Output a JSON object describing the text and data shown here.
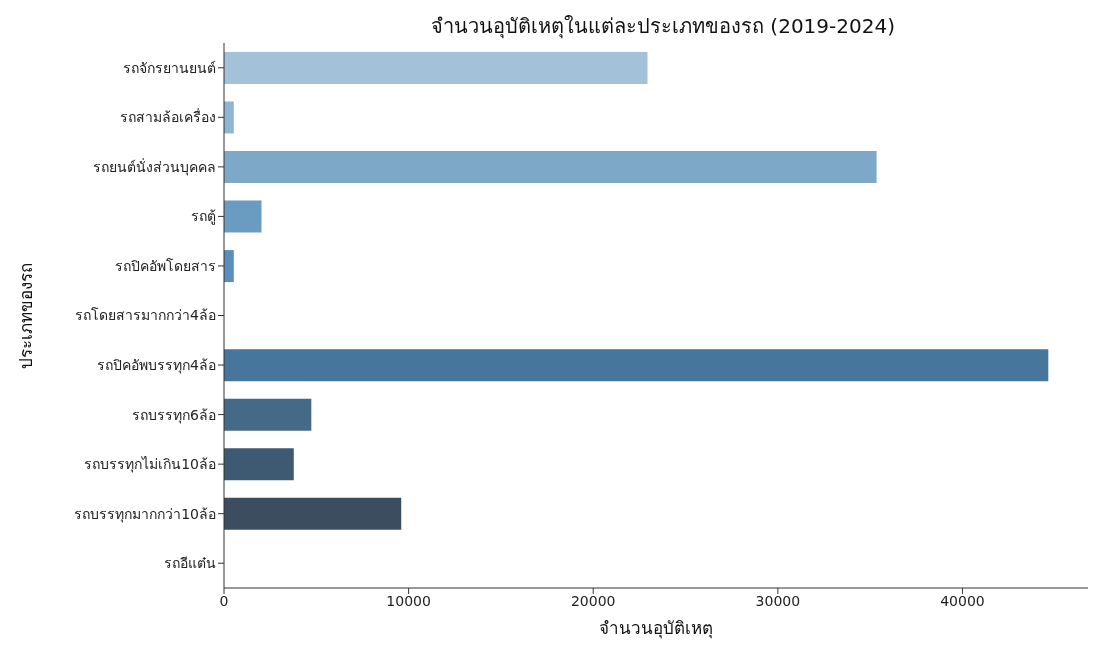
{
  "chart_data": {
    "type": "bar",
    "orientation": "horizontal",
    "title": "จำนวนอุบัติเหตุในแต่ละประเภทของรถ (2019-2024)",
    "xlabel": "จำนวนอุบัติเหตุ",
    "ylabel": "ประเภทของรถ",
    "categories": [
      "รถจักรยานยนต์",
      "รถสามล้อเครื่อง",
      "รถยนต์นั่งส่วนบุคคล",
      "รถตู้",
      "รถปิคอัพโดยสาร",
      "รถโดยสารมากกว่า4ล้อ",
      "รถปิคอัพบรรทุก4ล้อ",
      "รถบรรทุก6ล้อ",
      "รถบรรทุกไม่เกิน10ล้อ",
      "รถบรรทุกมากกว่า10ล้อ",
      "รถอีแต๋น"
    ],
    "values": [
      22940,
      530,
      35350,
      2030,
      530,
      0,
      44650,
      4730,
      3780,
      9600,
      0
    ],
    "colors": [
      "#a3c1d9",
      "#8fb4d4",
      "#7ea8c8",
      "#6a9bc0",
      "#5a8fbb",
      "#4e83ae",
      "#46769b",
      "#446a88",
      "#3e5a72",
      "#3b4d5e",
      "#363f48"
    ],
    "xlim": [
      0,
      46800
    ],
    "xticks": [
      0,
      10000,
      20000,
      30000,
      40000
    ],
    "grid": false,
    "legend": false
  }
}
